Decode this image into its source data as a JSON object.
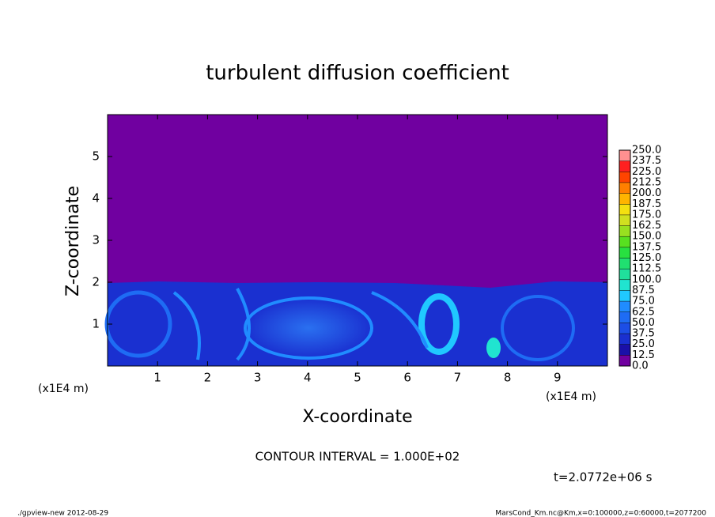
{
  "chart_data": {
    "type": "contour",
    "title": "turbulent diffusion coefficient",
    "x_label": "X-coordinate",
    "y_label": "Z-coordinate",
    "x_unit_label": "(x1E4 m)",
    "y_unit_label": "(x1E4 m)",
    "xlim": [
      0,
      10
    ],
    "ylim": [
      0,
      6
    ],
    "xticks": [
      1,
      2,
      3,
      4,
      5,
      6,
      7,
      8,
      9
    ],
    "yticks": [
      1,
      2,
      3,
      4,
      5
    ],
    "contour_interval_text": "CONTOUR INTERVAL = 1.000E+02",
    "time_text": "t=2.0772e+06 s",
    "footer_left": "./gpview-new  2012-08-29",
    "footer_right": "MarsCond_Km.nc@Km,x=0:100000,z=0:60000,t=2077200",
    "colorbar": {
      "ticks": [
        {
          "value": 0,
          "label": "0.0"
        },
        {
          "value": 12.5,
          "label": "12.5"
        },
        {
          "value": 25,
          "label": "25.0"
        },
        {
          "value": 37.5,
          "label": "37.5"
        },
        {
          "value": 50,
          "label": "50.0"
        },
        {
          "value": 62.5,
          "label": "62.5"
        },
        {
          "value": 75,
          "label": "75.0"
        },
        {
          "value": 87.5,
          "label": "87.5"
        },
        {
          "value": 100,
          "label": "100.0"
        },
        {
          "value": 112.5,
          "label": "112.5"
        },
        {
          "value": 125,
          "label": "125.0"
        },
        {
          "value": 137.5,
          "label": "137.5"
        },
        {
          "value": 150,
          "label": "150.0"
        },
        {
          "value": 162.5,
          "label": "162.5"
        },
        {
          "value": 175,
          "label": "175.0"
        },
        {
          "value": 187.5,
          "label": "187.5"
        },
        {
          "value": 200,
          "label": "200.0"
        },
        {
          "value": 212.5,
          "label": "212.5"
        },
        {
          "value": 225,
          "label": "225.0"
        },
        {
          "value": 237.5,
          "label": "237.5"
        },
        {
          "value": 250,
          "label": "250.0"
        }
      ],
      "colors": [
        "#7000a0",
        "#1a10a8",
        "#1a30d0",
        "#1c4ee6",
        "#1e6cf4",
        "#208cff",
        "#20c8ff",
        "#20e4d0",
        "#20e09c",
        "#20e070",
        "#28e040",
        "#58e020",
        "#98e020",
        "#d0e020",
        "#f4e010",
        "#ffb400",
        "#ff8000",
        "#ff4400",
        "#ff2020",
        "#ff9090"
      ]
    }
  }
}
